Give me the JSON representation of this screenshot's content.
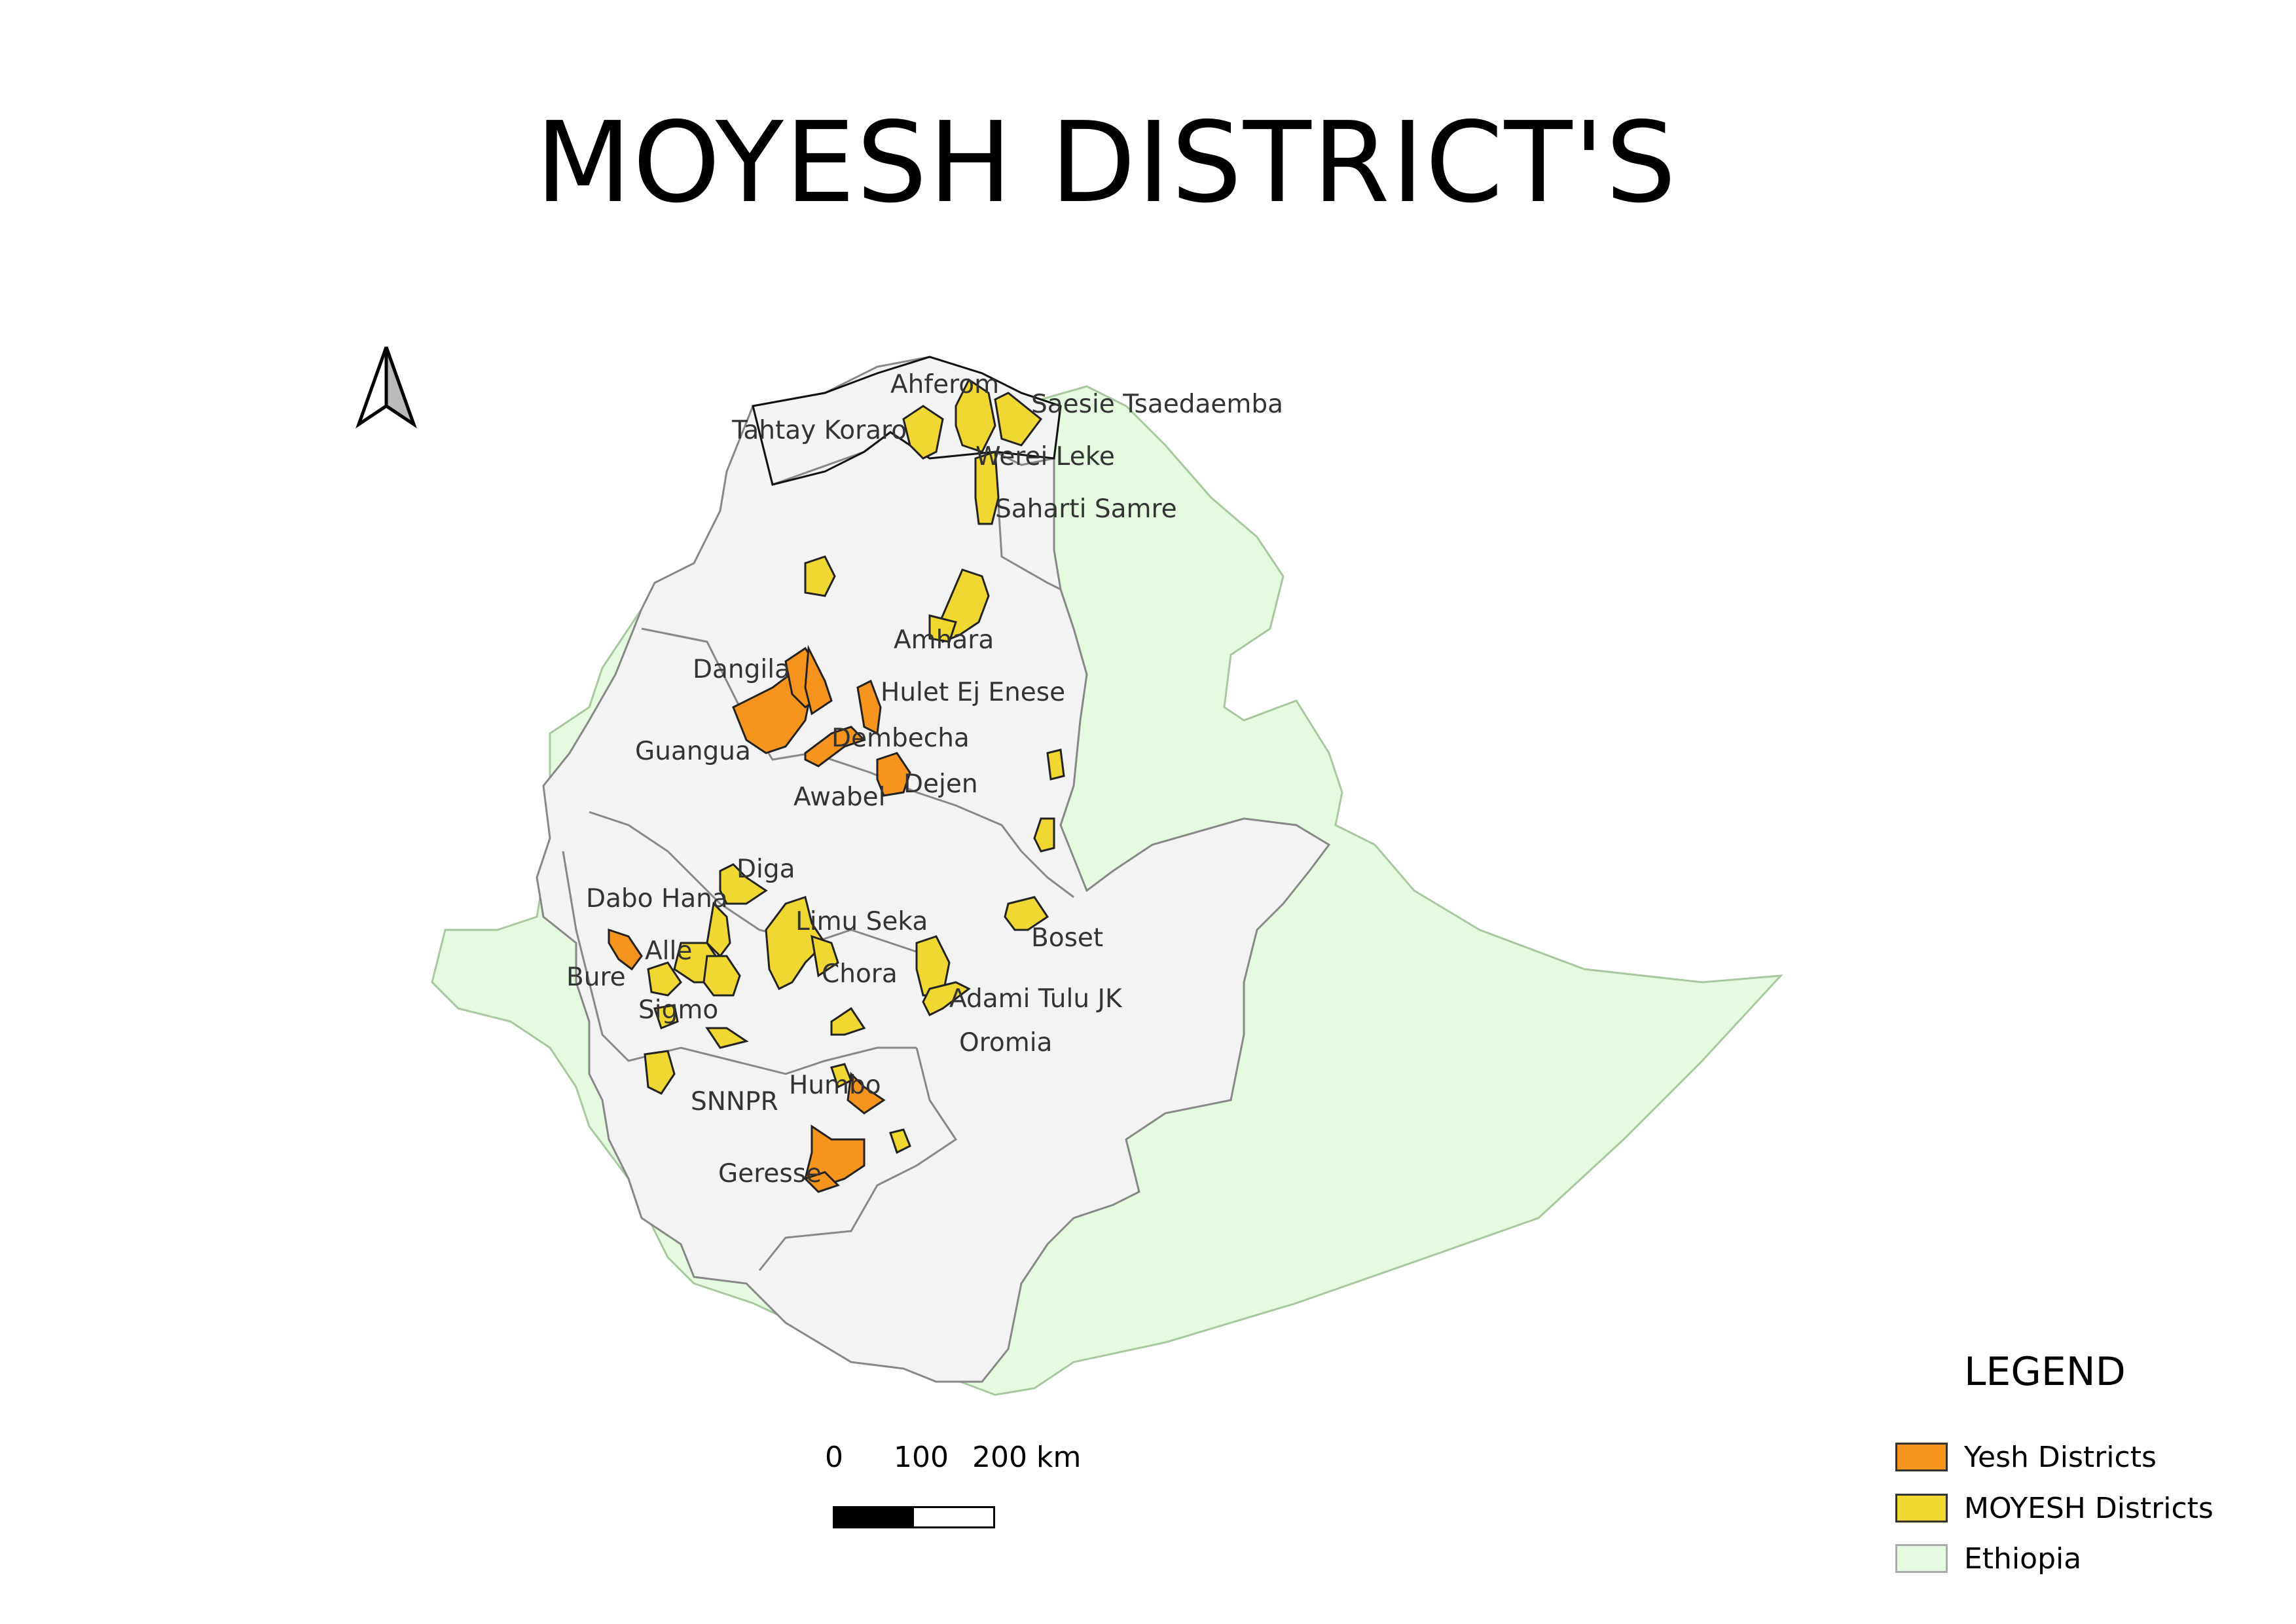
{
  "title": "MOYESH DISTRICT'S",
  "colors": {
    "yesh": "#f7941d",
    "moyesh": "#f0d732",
    "ethiopia": "#e5fbe0",
    "regions": "#f3f3f3",
    "region_border": "#888888",
    "district_border": "#222222"
  },
  "north_arrow": {
    "icon": "north-arrow-icon"
  },
  "labels": [
    "Ahferom",
    "Saesie Tsaedaemba",
    "Tahtay Koraro",
    "Werei Leke",
    "Saharti Samre",
    "Amhara",
    "Dangila",
    "Hulet Ej Enese",
    "Guangua",
    "Dembecha",
    "Dejen",
    "Awabel",
    "Diga",
    "Dabo Hana",
    "Limu Seka",
    "Boset",
    "Alle",
    "Bure",
    "Chora",
    "Adami Tulu JK",
    "Sigmo",
    "Oromia",
    "Humbo",
    "SNNPR",
    "Geresse"
  ],
  "scale": {
    "ticks": [
      "0",
      "100",
      "200 km"
    ]
  },
  "legend": {
    "title": "LEGEND",
    "items": [
      {
        "label": "Yesh Districts",
        "color": "#f7941d"
      },
      {
        "label": "MOYESH Districts",
        "color": "#f0d732"
      },
      {
        "label": "Ethiopia",
        "color": "#e5fbe0"
      }
    ]
  }
}
